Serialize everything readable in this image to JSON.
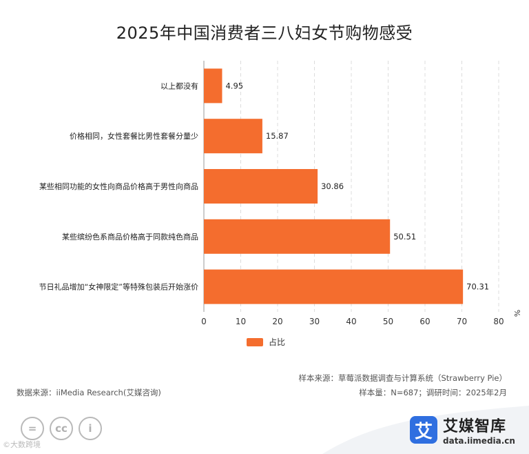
{
  "title": "2025年中国消费者三八妇女节购物感受",
  "chart_data": {
    "type": "bar",
    "orientation": "horizontal",
    "categories": [
      "以上都没有",
      "价格相同，女性套餐比男性套餐分量少",
      "某些相同功能的女性向商品价格高于男性向商品",
      "某些缤纷色系商品价格高于同款纯色商品",
      "节日礼品增加“女神限定”等特殊包装后开始涨价"
    ],
    "series": [
      {
        "name": "占比",
        "values": [
          4.95,
          15.87,
          30.86,
          50.51,
          70.31
        ]
      }
    ],
    "xlim": [
      0,
      80
    ],
    "xticks": [
      0,
      10,
      20,
      30,
      40,
      50,
      60,
      70,
      80
    ],
    "xunit": "%",
    "color": "#f46d2e",
    "legend": "bottom"
  },
  "footer": {
    "source": "数据来源：iiMedia Research(艾媒咨询)",
    "sample_source": "样本来源：草莓派数据调查与计算系统（Strawberry Pie）",
    "sample_info": "样本量：N=687；调研时间：2025年2月"
  },
  "logo": {
    "mark": "艾",
    "name": "艾媒智库",
    "url": "data.iimedia.cn"
  },
  "watermark": "©大数跨境",
  "license_icons": [
    "=",
    "cc",
    "i"
  ]
}
